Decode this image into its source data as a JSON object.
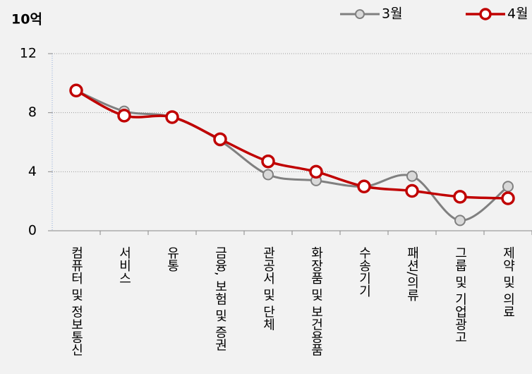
{
  "chart_data": {
    "type": "line",
    "y_unit": "10억",
    "categories": [
      "컴퓨터 및 정보통신",
      "서비스",
      "유통",
      "금융, 보험 및 증권",
      "관공서 및 단체",
      "화장품 및 보건용품",
      "수송기기",
      "패션/의류",
      "그룹 및 기업광고",
      "제약 및 의료"
    ],
    "series": [
      {
        "name": "3월",
        "color": "#808080",
        "marker_color": "#d9d9d9",
        "values": [
          9.5,
          8.1,
          7.7,
          6.1,
          3.8,
          3.4,
          3.0,
          3.7,
          0.7,
          3.0
        ]
      },
      {
        "name": "4월",
        "color": "#c00000",
        "marker_color": "#ffffff",
        "values": [
          9.5,
          7.8,
          7.7,
          6.2,
          4.7,
          4.0,
          3.0,
          2.7,
          2.3,
          2.2
        ]
      }
    ],
    "ylim": [
      0,
      12
    ],
    "yticks": [
      0,
      4,
      8,
      12
    ],
    "grid": true,
    "smooth": true,
    "legend": "top-right"
  }
}
